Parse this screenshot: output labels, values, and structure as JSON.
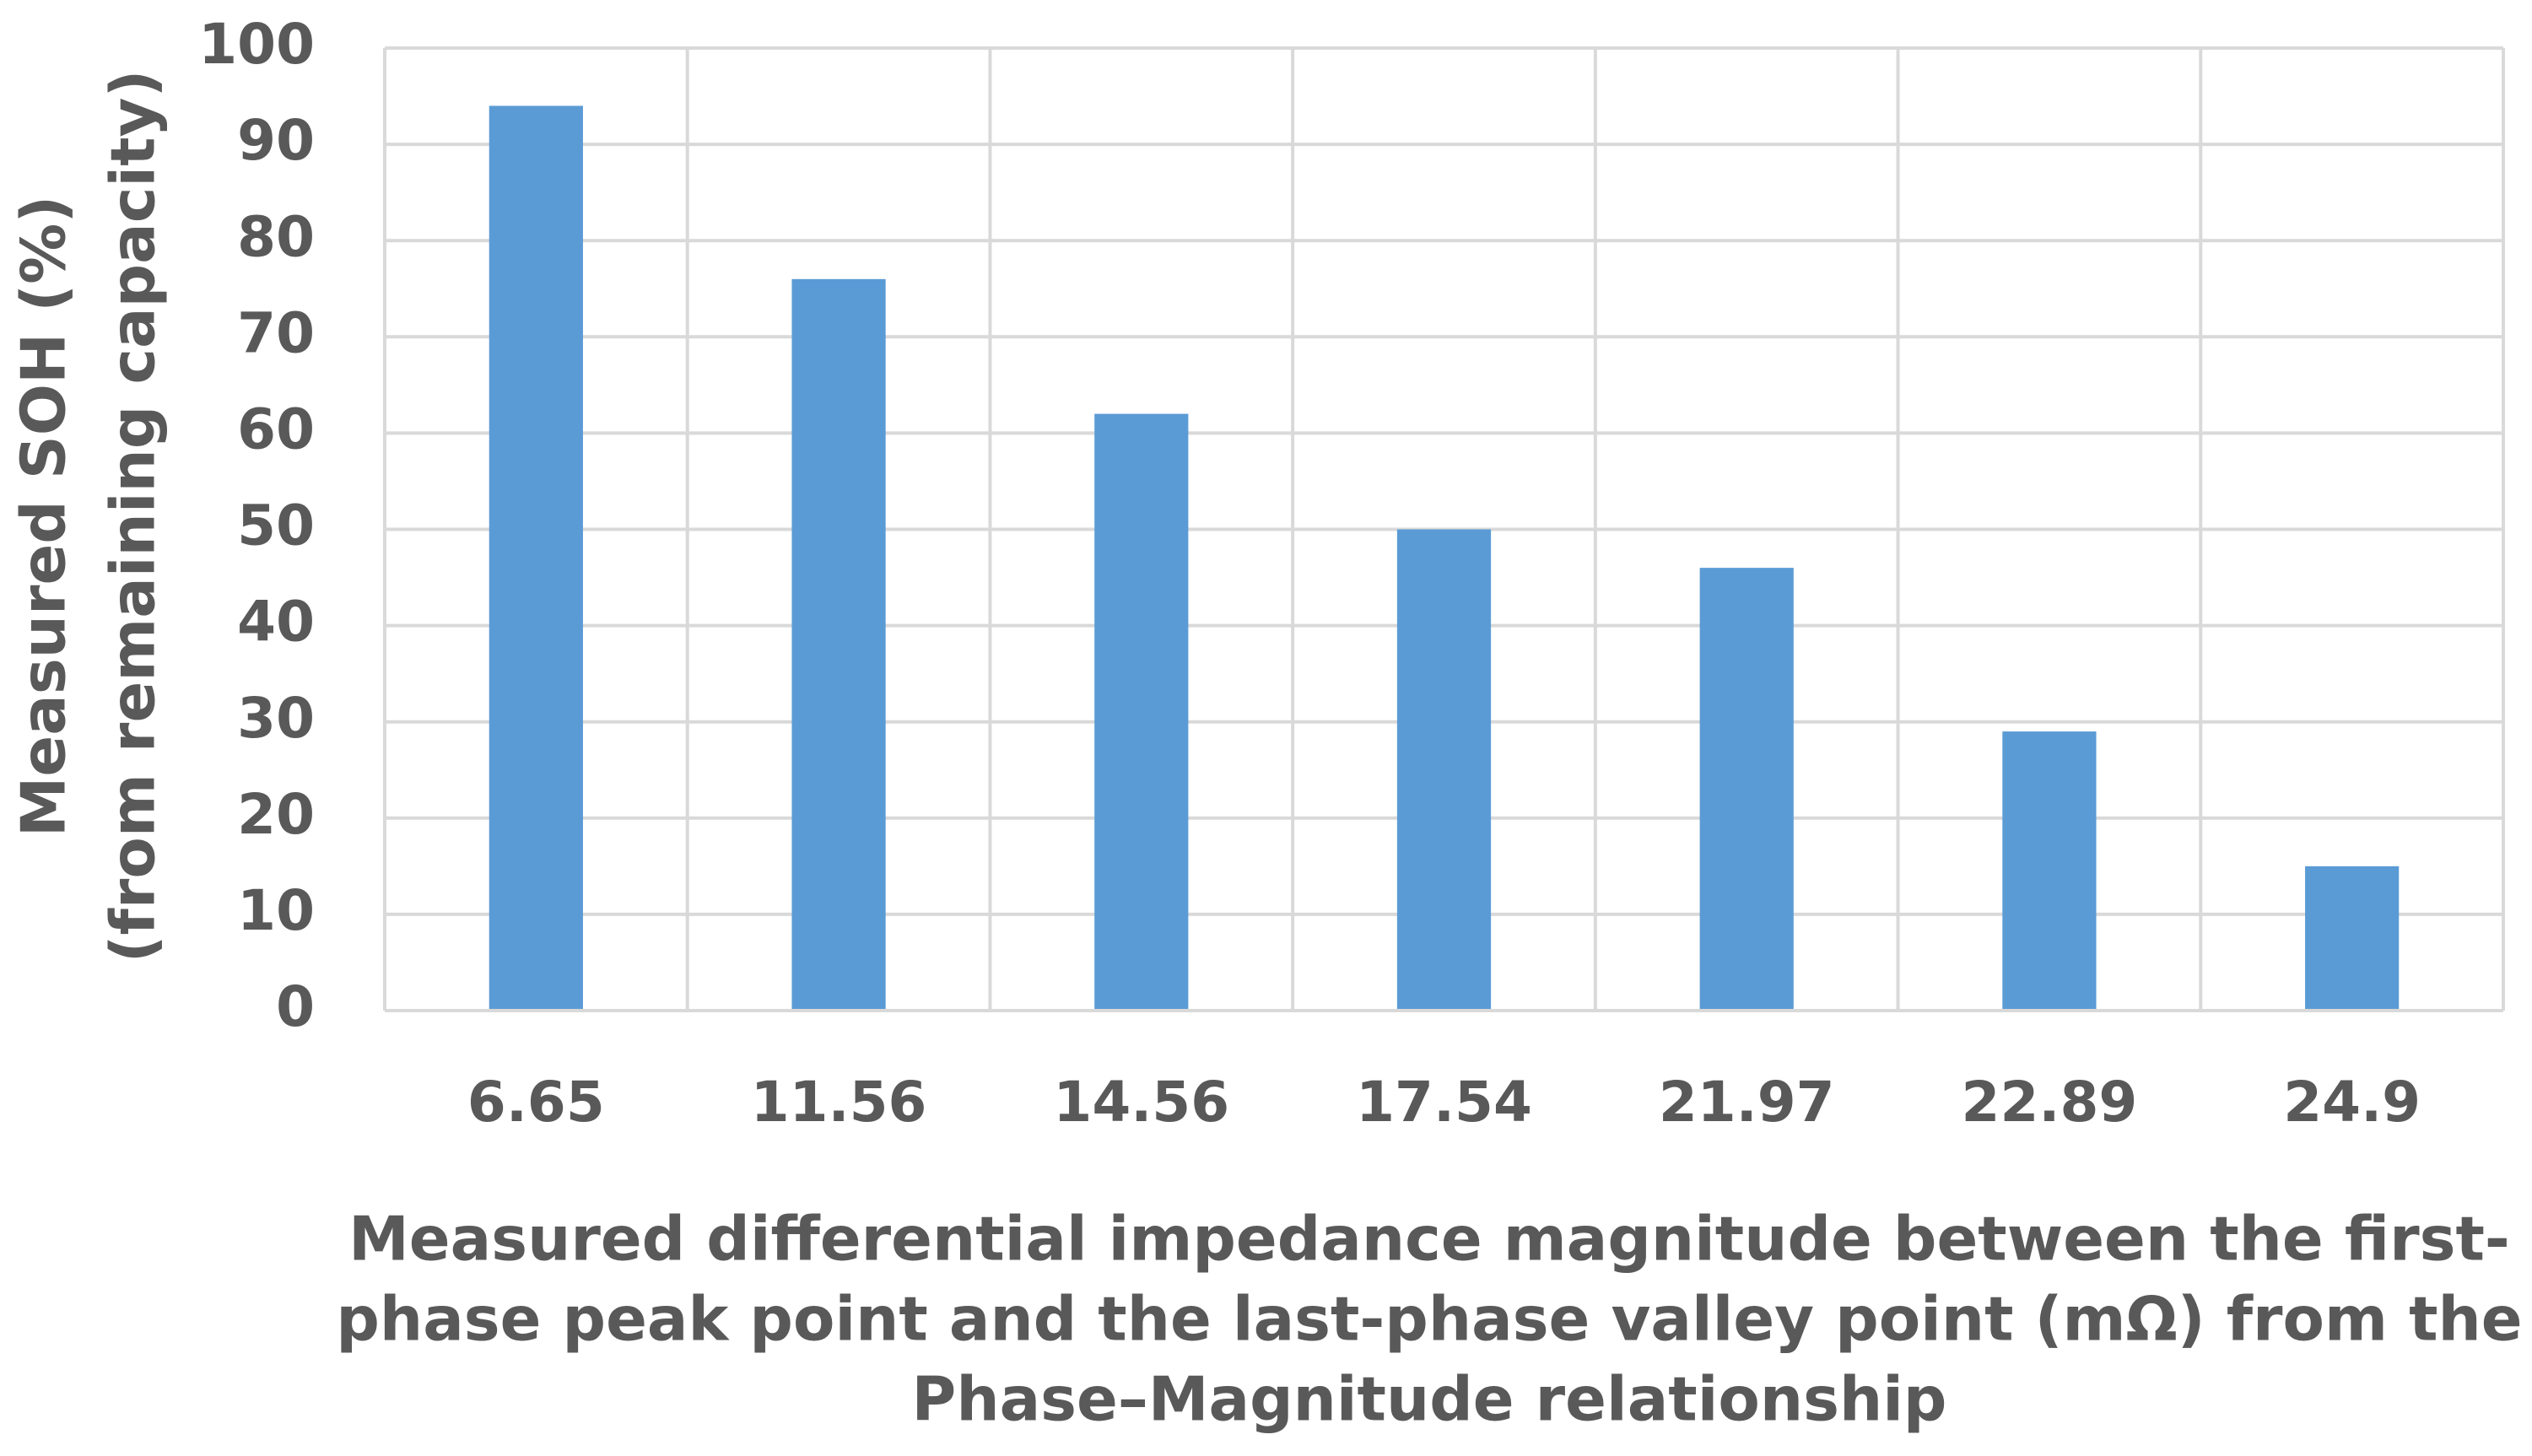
{
  "chart_data": {
    "type": "bar",
    "categories": [
      "6.65",
      "11.56",
      "14.56",
      "17.54",
      "21.97",
      "22.89",
      "24.9"
    ],
    "values": [
      94,
      76,
      62,
      50,
      46,
      29,
      15
    ],
    "color": "#5b9bd5",
    "ylim": [
      0,
      100
    ],
    "yticks": [
      0,
      10,
      20,
      30,
      40,
      50,
      60,
      70,
      80,
      90,
      100
    ],
    "grid": true,
    "ylabel": [
      "Measured  SOH (%)",
      "(from remaining capacity)"
    ],
    "xlabel": [
      "Measured differential impedance magnitude between the first-",
      "phase peak point and the last-phase valley point (mΩ) from the",
      "Phase–Magnitude relationship"
    ]
  }
}
